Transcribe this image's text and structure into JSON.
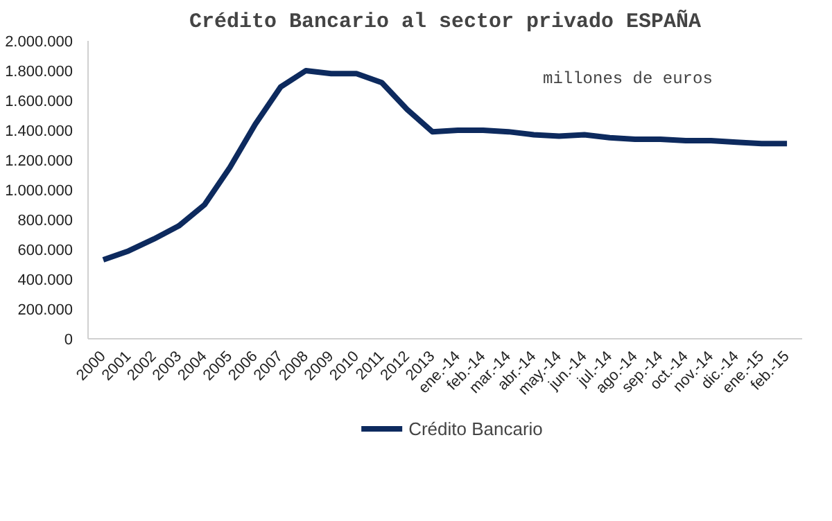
{
  "chart_data": {
    "type": "line",
    "title": "Crédito Bancario al sector privado ESPAÑA",
    "categories": [
      "2000",
      "2001",
      "2002",
      "2003",
      "2004",
      "2005",
      "2006",
      "2007",
      "2008",
      "2009",
      "2010",
      "2011",
      "2012",
      "2013",
      "ene.-14",
      "feb.-14",
      "mar.-14",
      "abr.-14",
      "may.-14",
      "jun.-14",
      "jul.-14",
      "ago.-14",
      "sep.-14",
      "oct.-14",
      "nov.-14",
      "dic.-14",
      "ene.-15",
      "feb.-15"
    ],
    "series": [
      {
        "name": "Crédito Bancario",
        "color": "#0d2a5e",
        "values": [
          530000,
          590000,
          670000,
          760000,
          900000,
          1150000,
          1440000,
          1690000,
          1800000,
          1780000,
          1780000,
          1720000,
          1540000,
          1390000,
          1400000,
          1400000,
          1390000,
          1370000,
          1360000,
          1370000,
          1350000,
          1340000,
          1340000,
          1330000,
          1330000,
          1320000,
          1310000,
          1310000
        ]
      }
    ],
    "ylim": [
      0,
      2000000
    ],
    "yticks": [
      {
        "value": 0,
        "label": "0"
      },
      {
        "value": 200000,
        "label": "200.000"
      },
      {
        "value": 400000,
        "label": "400.000"
      },
      {
        "value": 600000,
        "label": "600.000"
      },
      {
        "value": 800000,
        "label": "800.000"
      },
      {
        "value": 1000000,
        "label": "1.000.000"
      },
      {
        "value": 1200000,
        "label": "1.200.000"
      },
      {
        "value": 1400000,
        "label": "1.400.000"
      },
      {
        "value": 1600000,
        "label": "1.600.000"
      },
      {
        "value": 1800000,
        "label": "1.800.000"
      },
      {
        "value": 2000000,
        "label": "2.000.000"
      }
    ],
    "annotations": [
      "millones de euros"
    ],
    "grid": false,
    "legend": "bottom",
    "line_style": "solid",
    "marker": "none"
  }
}
